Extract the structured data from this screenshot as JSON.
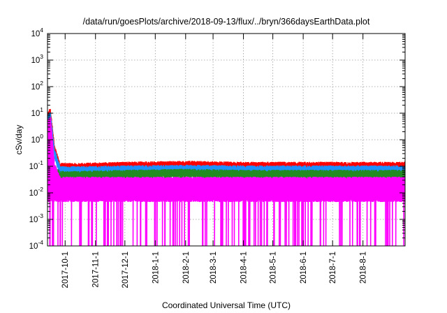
{
  "chart_data": {
    "type": "line",
    "title": "/data/run/goesPlots/archive/2018-09-13/flux/../bryn/366daysEarthData.plot",
    "xlabel": "Coordinated Universal Time (UTC)",
    "ylabel": "cSv/day",
    "yscale": "log",
    "ylim": [
      0.0001,
      10000
    ],
    "xlim": [
      "2017-09-13",
      "2018-09-13"
    ],
    "grid": true,
    "legend": "none",
    "x_ticks": [
      "2017-10-1",
      "2017-11-1",
      "2017-12-1",
      "2018-1-1",
      "2018-2-1",
      "2018-3-1",
      "2018-4-1",
      "2018-5-1",
      "2018-6-1",
      "2018-7-1",
      "2018-8-1"
    ],
    "y_ticks": [
      {
        "base": "10",
        "exp": "-4"
      },
      {
        "base": "10",
        "exp": "-3"
      },
      {
        "base": "10",
        "exp": "-2"
      },
      {
        "base": "10",
        "exp": "-1"
      },
      {
        "base": "10",
        "exp": "0"
      },
      {
        "base": "10",
        "exp": "1"
      },
      {
        "base": "10",
        "exp": "2"
      },
      {
        "base": "10",
        "exp": "3"
      },
      {
        "base": "10",
        "exp": "4"
      }
    ],
    "series": [
      {
        "color": "#ff0000",
        "x": [
          "2017-09-13",
          "2017-09-16",
          "2017-09-20",
          "2017-09-26",
          "2017-10-15",
          "2017-12-01",
          "2018-02-01",
          "2018-04-01",
          "2018-06-01",
          "2018-08-01",
          "2018-09-13"
        ],
        "y": [
          8,
          12,
          0.5,
          0.1,
          0.1,
          0.11,
          0.12,
          0.11,
          0.11,
          0.11,
          0.11
        ]
      },
      {
        "color": "#1e90ff",
        "x": [
          "2017-09-13",
          "2017-09-16",
          "2017-09-20",
          "2017-09-26",
          "2017-10-15",
          "2017-12-01",
          "2018-02-01",
          "2018-04-01",
          "2018-06-01",
          "2018-08-01",
          "2018-09-13"
        ],
        "y": [
          6,
          9,
          0.35,
          0.075,
          0.075,
          0.08,
          0.085,
          0.08,
          0.08,
          0.08,
          0.08
        ]
      },
      {
        "color": "#228b22",
        "x": [
          "2017-09-13",
          "2017-09-16",
          "2017-09-20",
          "2017-09-26",
          "2017-10-15",
          "2017-12-01",
          "2018-02-01",
          "2018-04-01",
          "2018-06-01",
          "2018-08-01",
          "2018-09-13"
        ],
        "y": [
          0.8,
          1.0,
          0.08,
          0.05,
          0.05,
          0.055,
          0.06,
          0.055,
          0.055,
          0.055,
          0.055
        ]
      },
      {
        "color": "#ff00ff",
        "x": [
          "2017-09-13",
          "2017-09-16",
          "2017-09-20",
          "2017-09-26",
          "2017-10-15",
          "2017-12-01",
          "2018-02-01",
          "2018-04-01",
          "2018-06-01",
          "2018-08-01",
          "2018-09-13"
        ],
        "y": [
          4,
          6,
          0.1,
          0.03,
          0.03,
          0.03,
          0.03,
          0.03,
          0.03,
          0.03,
          0.03
        ],
        "y_min": 0.005,
        "dropouts_to": 0.0001
      }
    ]
  }
}
